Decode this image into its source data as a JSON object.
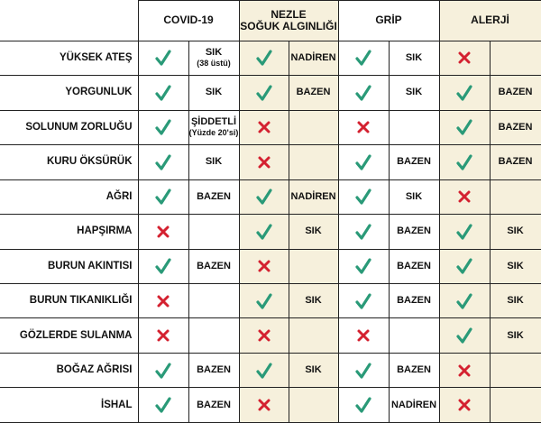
{
  "table": {
    "columns": [
      {
        "title": "COVID-19",
        "beige": false
      },
      {
        "title": "NEZLE",
        "subtitle": "SOĞUK ALGINLIĞI",
        "beige": true
      },
      {
        "title": "GRİP",
        "beige": false
      },
      {
        "title": "ALERJİ",
        "beige": true
      }
    ],
    "rows": [
      {
        "symptom": "YÜKSEK ATEŞ",
        "cells": [
          {
            "present": true,
            "freq": "SIK",
            "note": "(38 üstü)"
          },
          {
            "present": true,
            "freq": "NADİREN"
          },
          {
            "present": true,
            "freq": "SIK"
          },
          {
            "present": false,
            "freq": null
          }
        ]
      },
      {
        "symptom": "YORGUNLUK",
        "cells": [
          {
            "present": true,
            "freq": "SIK"
          },
          {
            "present": true,
            "freq": "BAZEN"
          },
          {
            "present": true,
            "freq": "SIK"
          },
          {
            "present": true,
            "freq": "BAZEN"
          }
        ]
      },
      {
        "symptom": "SOLUNUM ZORLUĞU",
        "cells": [
          {
            "present": true,
            "freq": "ŞİDDETLİ",
            "note": "(Yüzde 20'si)"
          },
          {
            "present": false,
            "freq": null
          },
          {
            "present": false,
            "freq": null
          },
          {
            "present": true,
            "freq": "BAZEN"
          }
        ]
      },
      {
        "symptom": "KURU ÖKSÜRÜK",
        "cells": [
          {
            "present": true,
            "freq": "SIK"
          },
          {
            "present": false,
            "freq": null
          },
          {
            "present": true,
            "freq": "BAZEN"
          },
          {
            "present": true,
            "freq": "BAZEN"
          }
        ]
      },
      {
        "symptom": "AĞRI",
        "cells": [
          {
            "present": true,
            "freq": "BAZEN"
          },
          {
            "present": true,
            "freq": "NADİREN"
          },
          {
            "present": true,
            "freq": "SIK"
          },
          {
            "present": false,
            "freq": null
          }
        ]
      },
      {
        "symptom": "HAPŞIRMA",
        "cells": [
          {
            "present": false,
            "freq": null
          },
          {
            "present": true,
            "freq": "SIK"
          },
          {
            "present": true,
            "freq": "BAZEN"
          },
          {
            "present": true,
            "freq": "SIK"
          }
        ]
      },
      {
        "symptom": "BURUN AKINTISI",
        "cells": [
          {
            "present": true,
            "freq": "BAZEN"
          },
          {
            "present": false,
            "freq": null
          },
          {
            "present": true,
            "freq": "BAZEN"
          },
          {
            "present": true,
            "freq": "SIK"
          }
        ]
      },
      {
        "symptom": "BURUN TIKANIKLIĞI",
        "cells": [
          {
            "present": false,
            "freq": null
          },
          {
            "present": true,
            "freq": "SIK"
          },
          {
            "present": true,
            "freq": "BAZEN"
          },
          {
            "present": true,
            "freq": "SIK"
          }
        ]
      },
      {
        "symptom": "GÖZLERDE SULANMA",
        "cells": [
          {
            "present": false,
            "freq": null
          },
          {
            "present": false,
            "freq": null
          },
          {
            "present": false,
            "freq": null
          },
          {
            "present": true,
            "freq": "SIK"
          }
        ]
      },
      {
        "symptom": "BOĞAZ AĞRISI",
        "cells": [
          {
            "present": true,
            "freq": "BAZEN"
          },
          {
            "present": true,
            "freq": "SIK"
          },
          {
            "present": true,
            "freq": "BAZEN"
          },
          {
            "present": false,
            "freq": null
          }
        ]
      },
      {
        "symptom": "İSHAL",
        "cells": [
          {
            "present": true,
            "freq": "BAZEN"
          },
          {
            "present": false,
            "freq": null
          },
          {
            "present": true,
            "freq": "NADİREN"
          },
          {
            "present": false,
            "freq": null
          }
        ]
      }
    ]
  }
}
